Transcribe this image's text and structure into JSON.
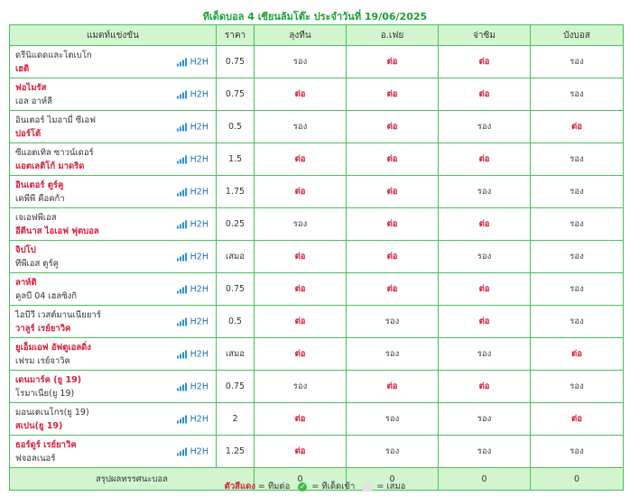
{
  "title": "ทีเด็ดบอล 4 เซียนล้มโต๊ะ ประจำวันที่ 19/06/2025",
  "headers": [
    "แมตท์แข่งขัน",
    "ราคา",
    "ลุงทีน",
    "อ.เฟย",
    "จ่าซิม",
    "บังบอส"
  ],
  "h2h_label": "H2H",
  "matches": [
    {
      "t1": "ดรีนิแดดและโตเบโก",
      "t1_fav": false,
      "t2": "เฮติ",
      "t2_fav": true,
      "price": "0.75",
      "picks": [
        [
          "รอง",
          "gray"
        ],
        [
          "ต่อ",
          "red"
        ],
        [
          "ต่อ",
          "red"
        ],
        [
          "รอง",
          "gray"
        ]
      ]
    },
    {
      "t1": "ฟอไมรัส",
      "t1_fav": true,
      "t2": "เอล อาห์ลี",
      "t2_fav": false,
      "price": "0.75",
      "picks": [
        [
          "ต่อ",
          "red"
        ],
        [
          "ต่อ",
          "red"
        ],
        [
          "ต่อ",
          "red"
        ],
        [
          "รอง",
          "gray"
        ]
      ]
    },
    {
      "t1": "อินเตอร์ ไมอามี่ ซีเอฟ",
      "t1_fav": false,
      "t2": "ปอร์โต้",
      "t2_fav": true,
      "price": "0.5",
      "picks": [
        [
          "รอง",
          "gray"
        ],
        [
          "ต่อ",
          "red"
        ],
        [
          "รอง",
          "gray"
        ],
        [
          "ต่อ",
          "red"
        ]
      ]
    },
    {
      "t1": "ซีแอตเทิล ซาวน์เดอร์",
      "t1_fav": false,
      "t2": "แอตเลติโก้ มาดริด",
      "t2_fav": true,
      "price": "1.5",
      "picks": [
        [
          "ต่อ",
          "red"
        ],
        [
          "ต่อ",
          "red"
        ],
        [
          "ต่อ",
          "red"
        ],
        [
          "รอง",
          "gray"
        ]
      ]
    },
    {
      "t1": "อินเตอร์ ตูร์คู",
      "t1_fav": true,
      "t2": "เคพีพี คือคก้า",
      "t2_fav": false,
      "price": "1.75",
      "picks": [
        [
          "ต่อ",
          "red"
        ],
        [
          "ต่อ",
          "red"
        ],
        [
          "รอง",
          "gray"
        ],
        [
          "รอง",
          "gray"
        ]
      ]
    },
    {
      "t1": "เจเอฟพีเอส",
      "t1_fav": false,
      "t2": "อีตีนาส ไอเอฟ ฟุตบอล",
      "t2_fav": true,
      "price": "0.25",
      "picks": [
        [
          "รอง",
          "gray"
        ],
        [
          "ต่อ",
          "red"
        ],
        [
          "ต่อ",
          "red"
        ],
        [
          "รอง",
          "gray"
        ]
      ]
    },
    {
      "t1": "จิปโป",
      "t1_fav": true,
      "t2": "ทีพีเอส ตูร์คู",
      "t2_fav": false,
      "price": "เสมอ",
      "picks": [
        [
          "ต่อ",
          "red"
        ],
        [
          "ต่อ",
          "red"
        ],
        [
          "รอง",
          "gray"
        ],
        [
          "รอง",
          "gray"
        ]
      ]
    },
    {
      "t1": "ลาห์ติ",
      "t1_fav": true,
      "t2": "คูลบี 04 เฮลซิงกิ",
      "t2_fav": false,
      "price": "0.75",
      "picks": [
        [
          "ต่อ",
          "red"
        ],
        [
          "ต่อ",
          "red"
        ],
        [
          "ต่อ",
          "red"
        ],
        [
          "รอง",
          "gray"
        ]
      ]
    },
    {
      "t1": "ไอบีวี เวสต์มานเนียยาร์",
      "t1_fav": false,
      "t2": "วาลูร์ เรย์ยาวิค",
      "t2_fav": true,
      "price": "0.5",
      "picks": [
        [
          "ต่อ",
          "red"
        ],
        [
          "รอง",
          "gray"
        ],
        [
          "ต่อ",
          "red"
        ],
        [
          "รอง",
          "gray"
        ]
      ]
    },
    {
      "t1": "ยูเอ็มเอฟ อัฟตูเอลดิ่ง",
      "t1_fav": true,
      "t2": "เฟรม เรย์จาวิค",
      "t2_fav": false,
      "price": "เสมอ",
      "picks": [
        [
          "ต่อ",
          "red"
        ],
        [
          "รอง",
          "gray"
        ],
        [
          "รอง",
          "gray"
        ],
        [
          "ต่อ",
          "red"
        ]
      ]
    },
    {
      "t1": "เดนมาร์ค (ยู 19)",
      "t1_fav": true,
      "t2": "โรมาเนีย(ยู 19)",
      "t2_fav": false,
      "price": "0.75",
      "picks": [
        [
          "รอง",
          "gray"
        ],
        [
          "ต่อ",
          "red"
        ],
        [
          "ต่อ",
          "red"
        ],
        [
          "รอง",
          "gray"
        ]
      ]
    },
    {
      "t1": "มอนเตเนโกร(ยู 19)",
      "t1_fav": false,
      "t2": "สเปน(ยู 19)",
      "t2_fav": true,
      "price": "2",
      "picks": [
        [
          "ต่อ",
          "red"
        ],
        [
          "รอง",
          "gray"
        ],
        [
          "รอง",
          "gray"
        ],
        [
          "ต่อ",
          "red"
        ]
      ]
    },
    {
      "t1": "ธอร์ดูร์ เรย์ยาวิค",
      "t1_fav": true,
      "t2": "ฟจอลเนอร์",
      "t2_fav": false,
      "price": "1.25",
      "picks": [
        [
          "ต่อ",
          "red"
        ],
        [
          "รอง",
          "gray"
        ],
        [
          "รอง",
          "gray"
        ],
        [
          "รอง",
          "gray"
        ]
      ]
    }
  ],
  "summary": {
    "label": "สรุปผลทรรศนะบอล",
    "scores": [
      "0",
      "0",
      "0",
      "0"
    ]
  },
  "legend": {
    "red_text": "ตัวสีแดง",
    "red_desc": "= ทีมต่อ",
    "check_desc": "= ทีเด็ดเข้า",
    "box_desc": "= เสมอ"
  },
  "colors": {
    "accent": "#1aa23a",
    "header_bg": "#d2f5d0",
    "border": "#4cbf5a",
    "fav": "#d6203c",
    "h2h": "#1d6fb8"
  }
}
